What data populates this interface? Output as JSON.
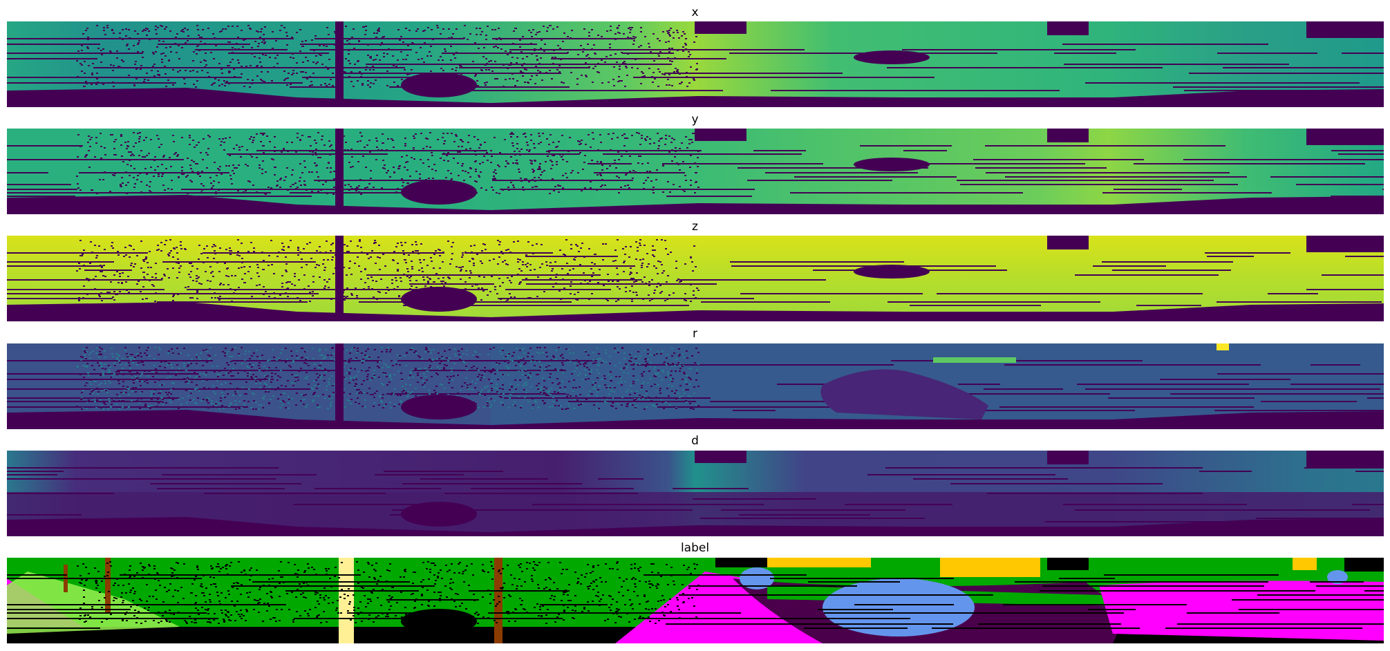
{
  "panels": [
    {
      "title": "x",
      "colormap": "viridis"
    },
    {
      "title": "y",
      "colormap": "viridis"
    },
    {
      "title": "z",
      "colormap": "viridis"
    },
    {
      "title": "r",
      "colormap": "viridis"
    },
    {
      "title": "d",
      "colormap": "viridis"
    },
    {
      "title": "label",
      "colormap": "semantic-classes"
    }
  ],
  "colors": {
    "background": "#ffffff",
    "void": "#440154",
    "label_black": "#000000",
    "label_vegetation": "#00a800",
    "label_terrain": "#96f050",
    "label_road": "#ff00ff",
    "label_car": "#6495ed",
    "label_trunk": "#8b3c00",
    "label_building": "#ffc800",
    "label_pole": "#fff096",
    "label_sidewalk": "#4b004b"
  }
}
